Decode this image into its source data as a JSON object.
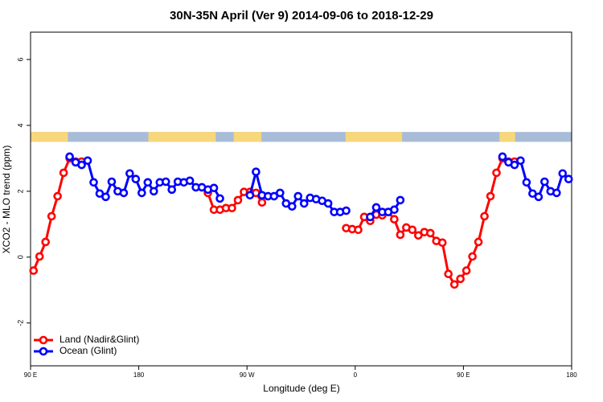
{
  "chart_data": {
    "type": "line",
    "title": "30N-35N April (Ver 9)   2014-09-06 to 2018-12-29",
    "x_label": "Longitude (deg E)",
    "y_label": "XCO2 - MLO trend (ppm)",
    "xlim": [
      90,
      540
    ],
    "ylim": [
      -3.3,
      6.83
    ],
    "xticks": [
      {
        "value": 90,
        "label": "90 E"
      },
      180,
      {
        "value": 270,
        "label": "90 W"
      },
      {
        "value": 360,
        "label": "0"
      },
      {
        "value": 450,
        "label": "90 E"
      },
      {
        "value": 540,
        "label": "180"
      }
    ],
    "yticks": [
      -2,
      0,
      2,
      4,
      6
    ],
    "legend": "bottom-left",
    "land_strip": {
      "ylim": [
        3.5,
        3.8
      ],
      "land_color": "#f8d77b",
      "ocean_color": "#a8bcd8",
      "land": [
        [
          90,
          121
        ],
        [
          188,
          244
        ],
        [
          259,
          282
        ],
        [
          352,
          399
        ],
        [
          480,
          493
        ]
      ]
    },
    "x": [
      92.5,
      97.5,
      102.5,
      107.5,
      112.5,
      117.5,
      122.5,
      127.5,
      132.5,
      137.5,
      142.5,
      147.5,
      152.5,
      157.5,
      162.5,
      167.5,
      172.5,
      177.5,
      182.5,
      187.5,
      192.5,
      197.5,
      202.5,
      207.5,
      212.5,
      217.5,
      222.5,
      227.5,
      232.5,
      237.5,
      242.5,
      247.5,
      252.5,
      257.5,
      262.5,
      267.5,
      272.5,
      277.5,
      282.5,
      287.5,
      292.5,
      297.5,
      302.5,
      307.5,
      312.5,
      317.5,
      322.5,
      327.5,
      332.5,
      337.5,
      342.5,
      347.5,
      352.5,
      357.5,
      362.5,
      367.5,
      372.5,
      377.5,
      382.5,
      387.5,
      392.5,
      397.5,
      402.5,
      407.5,
      412.5,
      417.5,
      422.5,
      427.5,
      432.5,
      437.5,
      442.5,
      447.5,
      452.5,
      457.5,
      462.5,
      467.5,
      472.5,
      477.5,
      482.5,
      487.5,
      492.5,
      497.5,
      502.5,
      507.5,
      512.5,
      517.5,
      522.5,
      527.5,
      532.5,
      537.5
    ],
    "series": [
      {
        "name": "Land (Nadir&Glint)",
        "color": "#ff0000",
        "values": [
          -0.41,
          0.02,
          0.46,
          1.24,
          1.85,
          2.56,
          3.0,
          2.9,
          2.9,
          null,
          null,
          null,
          null,
          null,
          null,
          null,
          null,
          null,
          null,
          null,
          null,
          null,
          null,
          null,
          null,
          null,
          null,
          null,
          null,
          1.95,
          1.44,
          1.44,
          1.49,
          1.49,
          1.73,
          1.98,
          1.98,
          1.95,
          1.66,
          null,
          null,
          null,
          null,
          null,
          null,
          null,
          null,
          null,
          null,
          null,
          null,
          null,
          0.88,
          0.85,
          0.83,
          1.22,
          1.1,
          1.29,
          1.27,
          1.37,
          1.15,
          0.68,
          0.9,
          0.83,
          0.66,
          0.76,
          0.73,
          0.49,
          0.44,
          -0.51,
          -0.83,
          -0.66,
          -0.41,
          0.02,
          0.46,
          1.24,
          1.85,
          2.56,
          3.0,
          2.9,
          2.9,
          null,
          null,
          null,
          null,
          null,
          null,
          null,
          null,
          null
        ]
      },
      {
        "name": "Ocean (Glint)",
        "color": "#0000ff",
        "values": [
          null,
          null,
          null,
          null,
          null,
          null,
          3.05,
          2.88,
          2.8,
          2.93,
          2.27,
          1.93,
          1.83,
          2.29,
          2.0,
          1.95,
          2.54,
          2.37,
          1.95,
          2.27,
          2.0,
          2.27,
          2.29,
          2.05,
          2.29,
          2.27,
          2.32,
          2.12,
          2.12,
          2.05,
          2.1,
          1.78,
          null,
          null,
          null,
          null,
          1.88,
          2.59,
          1.88,
          1.85,
          1.85,
          1.95,
          1.63,
          1.54,
          1.85,
          1.63,
          1.8,
          1.76,
          1.71,
          1.63,
          1.37,
          1.37,
          1.41,
          null,
          null,
          null,
          1.22,
          1.51,
          1.37,
          1.37,
          1.44,
          1.73,
          null,
          null,
          null,
          null,
          null,
          null,
          null,
          null,
          null,
          null,
          null,
          null,
          null,
          null,
          null,
          null,
          3.05,
          2.88,
          2.8,
          2.93,
          2.27,
          1.93,
          1.83,
          2.29,
          2.0,
          1.95,
          2.54,
          2.37
        ]
      }
    ]
  }
}
